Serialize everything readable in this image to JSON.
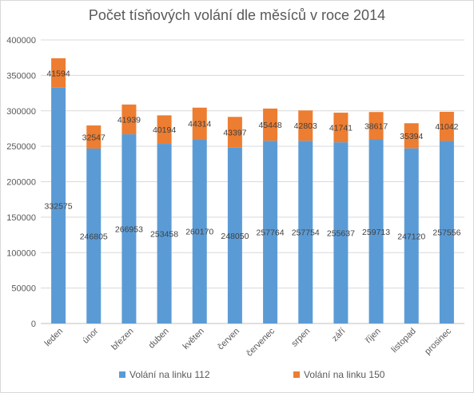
{
  "chart_data": {
    "type": "bar",
    "stacked": true,
    "title": "Počet tísňových volání dle měsíců v roce 2014",
    "categories": [
      "leden",
      "únor",
      "březen",
      "duben",
      "květen",
      "červen",
      "červenec",
      "srpen",
      "září",
      "říjen",
      "listopad",
      "prosinec"
    ],
    "series": [
      {
        "name": "Volání na linku 112",
        "color": "#5b9bd5",
        "values": [
          332575,
          246805,
          266953,
          253458,
          260170,
          248050,
          257764,
          257754,
          255637,
          259713,
          247120,
          257556
        ]
      },
      {
        "name": "Volání na linku 150",
        "color": "#ed7d31",
        "values": [
          41594,
          32547,
          41939,
          40194,
          44314,
          43397,
          45448,
          42803,
          41741,
          38617,
          35394,
          41042
        ]
      }
    ],
    "ylim": [
      0,
      400000
    ],
    "yticks": [
      "0",
      "50000",
      "100000",
      "150000",
      "200000",
      "250000",
      "300000",
      "350000",
      "400000"
    ],
    "grid": true,
    "legend": "bottom"
  }
}
